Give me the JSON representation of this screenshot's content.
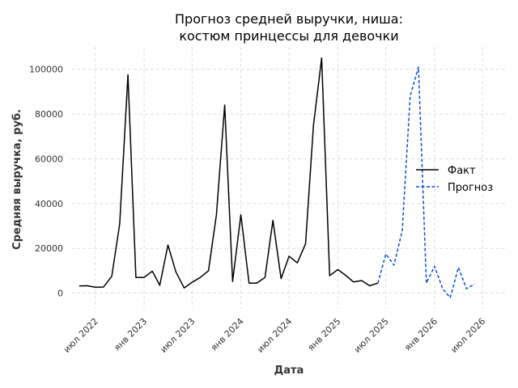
{
  "chart_data": {
    "type": "line",
    "title_lines": [
      "Прогноз средней выручки, ниша:",
      "костюм принцессы для девочки"
    ],
    "xlabel": "Дата",
    "ylabel": "Средняя выручка, руб.",
    "x_range": [
      "2022-04-01",
      "2026-09-30"
    ],
    "ylim": [
      -7000,
      110000
    ],
    "grid": true,
    "legend_position": "center-right",
    "x_ticks": [
      {
        "date": "2022-07-01",
        "label": "июл 2022"
      },
      {
        "date": "2023-01-01",
        "label": "янв 2023"
      },
      {
        "date": "2023-07-01",
        "label": "июл 2023"
      },
      {
        "date": "2024-01-01",
        "label": "янв 2024"
      },
      {
        "date": "2024-07-01",
        "label": "июл 2024"
      },
      {
        "date": "2025-01-01",
        "label": "янв 2025"
      },
      {
        "date": "2025-07-01",
        "label": "июл 2025"
      },
      {
        "date": "2026-01-01",
        "label": "янв 2026"
      },
      {
        "date": "2026-07-01",
        "label": "июл 2026"
      }
    ],
    "y_ticks": [
      0,
      20000,
      40000,
      60000,
      80000,
      100000
    ],
    "series": [
      {
        "name": "Факт",
        "color": "#000000",
        "style": "solid",
        "points": [
          [
            "2022-05-01",
            3200
          ],
          [
            "2022-06-01",
            3300
          ],
          [
            "2022-07-01",
            2600
          ],
          [
            "2022-08-01",
            2700
          ],
          [
            "2022-09-01",
            7500
          ],
          [
            "2022-10-01",
            31000
          ],
          [
            "2022-11-01",
            97500
          ],
          [
            "2022-12-01",
            7000
          ],
          [
            "2023-01-01",
            7000
          ],
          [
            "2023-02-01",
            9800
          ],
          [
            "2023-03-01",
            3500
          ],
          [
            "2023-04-01",
            21500
          ],
          [
            "2023-05-01",
            9500
          ],
          [
            "2023-06-01",
            2300
          ],
          [
            "2023-07-01",
            4800
          ],
          [
            "2023-08-01",
            7000
          ],
          [
            "2023-09-01",
            10000
          ],
          [
            "2023-10-01",
            35000
          ],
          [
            "2023-11-01",
            84000
          ],
          [
            "2023-12-01",
            5200
          ],
          [
            "2024-01-01",
            35000
          ],
          [
            "2024-02-01",
            4500
          ],
          [
            "2024-03-01",
            4500
          ],
          [
            "2024-04-01",
            7000
          ],
          [
            "2024-05-01",
            32500
          ],
          [
            "2024-06-01",
            6500
          ],
          [
            "2024-07-01",
            16500
          ],
          [
            "2024-08-01",
            13500
          ],
          [
            "2024-09-01",
            22000
          ],
          [
            "2024-10-01",
            75000
          ],
          [
            "2024-11-01",
            105000
          ],
          [
            "2024-12-01",
            7800
          ],
          [
            "2025-01-01",
            10500
          ],
          [
            "2025-02-01",
            7800
          ],
          [
            "2025-03-01",
            5000
          ],
          [
            "2025-04-01",
            5600
          ],
          [
            "2025-05-01",
            3300
          ],
          [
            "2025-06-01",
            4500
          ]
        ]
      },
      {
        "name": "Прогноз",
        "color": "#0b4fd9",
        "style": "dashed",
        "points": [
          [
            "2025-06-01",
            4500
          ],
          [
            "2025-07-01",
            17500
          ],
          [
            "2025-08-01",
            12500
          ],
          [
            "2025-09-01",
            28000
          ],
          [
            "2025-10-01",
            88000
          ],
          [
            "2025-11-01",
            101000
          ],
          [
            "2025-12-01",
            4500
          ],
          [
            "2026-01-01",
            12000
          ],
          [
            "2026-02-01",
            1800
          ],
          [
            "2026-03-01",
            -2000
          ],
          [
            "2026-04-01",
            11500
          ],
          [
            "2026-05-01",
            2000
          ],
          [
            "2026-06-01",
            4000
          ]
        ]
      }
    ]
  }
}
